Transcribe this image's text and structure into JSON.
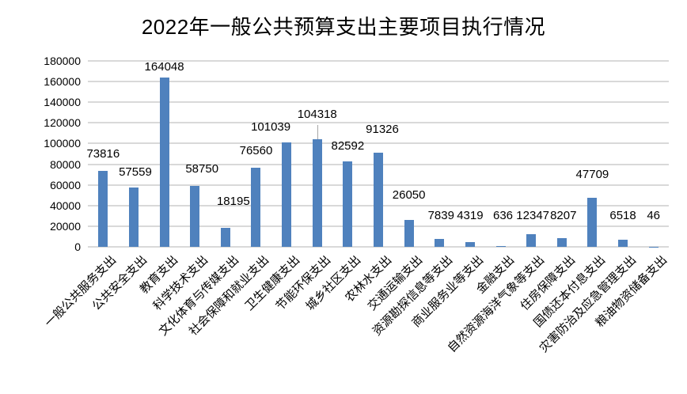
{
  "chart_data": {
    "type": "bar",
    "title": "2022年一般公共预算支出主要项目执行情况",
    "xlabel": "",
    "ylabel": "",
    "ylim": [
      0,
      180000
    ],
    "yticks": [
      0,
      20000,
      40000,
      60000,
      80000,
      100000,
      120000,
      140000,
      160000,
      180000
    ],
    "grid": true,
    "legend": null,
    "bar_color": "#4F81BD",
    "categories": [
      "一般公共服务支出",
      "公共安全支出",
      "教育支出",
      "科学技术支出",
      "文化体育与传媒支出",
      "社会保障和就业支出",
      "卫生健康支出",
      "节能环保支出",
      "城乡社区支出",
      "农林水支出",
      "交通运输支出",
      "资源勘探信息等支出",
      "商业服务业等支出",
      "金融支出",
      "自然资源海洋气象等支出",
      "住房保障支出",
      "国债还本付息支出",
      "灾害防治及应急管理支出",
      "粮油物资储备支出"
    ],
    "values": [
      73816,
      57559,
      164048,
      58750,
      18195,
      76560,
      101039,
      104318,
      82592,
      91326,
      26050,
      7839,
      4319,
      636,
      12347,
      8207,
      47709,
      6518,
      46
    ],
    "data_labels": [
      "73816",
      "57559",
      "164048",
      "58750",
      "18195",
      "76560",
      "101039",
      "104318",
      "82592",
      "91326",
      "26050",
      "7839",
      "4319",
      "636",
      "12347",
      "8207",
      "47709",
      "6518",
      "46"
    ]
  }
}
